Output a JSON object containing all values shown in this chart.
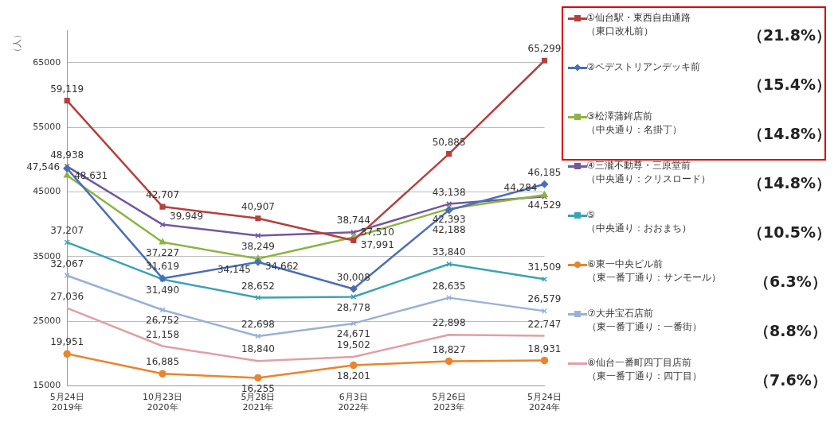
{
  "chart_data": {
    "type": "line",
    "ylabel": "（人）",
    "categories": [
      "5月24日\n2019年",
      "10月23日\n2020年",
      "5月28日\n2021年",
      "6月3日\n2022年",
      "5月26日\n2023年",
      "5月24日\n2024年"
    ],
    "series": [
      {
        "name": "①仙台駅・東西自由通路（東口改札前）",
        "color": "#b5403c",
        "marker": "square",
        "values": [
          59119,
          42707,
          40907,
          37510,
          50885,
          65299
        ],
        "value_labels": [
          "59,119",
          "42,707",
          "40,907",
          "37,510",
          "50,885",
          "65,299"
        ]
      },
      {
        "name": "②ペデストリアンデッキ前",
        "color": "#4a6fb5",
        "marker": "diamond",
        "values": [
          48631,
          31619,
          34145,
          30008,
          42188,
          46185
        ],
        "value_labels": [
          "48,631",
          "31,619",
          "34,145",
          "30,008",
          "42,188",
          "46,185"
        ]
      },
      {
        "name": "③松澤蒲鉾店前（中央通り：名掛丁）",
        "color": "#8db443",
        "marker": "triangle",
        "values": [
          47546,
          37227,
          34662,
          37991,
          42393,
          44529
        ],
        "value_labels": [
          "47,546",
          "37,227",
          "34,662",
          "37,991",
          "42,393",
          "44,529"
        ]
      },
      {
        "name": "④三瀧不動尊・三原堂前（中央通り：クリスロード）",
        "color": "#7556a0",
        "marker": "cross",
        "values": [
          48938,
          39949,
          38249,
          38744,
          43138,
          44284
        ],
        "value_labels": [
          "48,938",
          "39,949",
          "38,249",
          "38,744",
          "43,138",
          "44,284"
        ]
      },
      {
        "name": "⑤（中央通り：おおまち）",
        "color": "#3ca3b5",
        "marker": "cross",
        "values": [
          37207,
          31490,
          28652,
          28778,
          33840,
          31509
        ],
        "value_labels": [
          "37,207",
          "31,490",
          "28,652",
          "28,778",
          "33,840",
          "31,509"
        ]
      },
      {
        "name": "⑥東一中央ビル前（東一番丁通り：サンモール）",
        "color": "#e8862e",
        "marker": "circle",
        "values": [
          19951,
          16885,
          16255,
          18201,
          18827,
          18931
        ],
        "value_labels": [
          "19,951",
          "16,885",
          "16,255",
          "18,201",
          "18,827",
          "18,931"
        ]
      },
      {
        "name": "⑦大井宝石店前（東一番丁通り：一番街）",
        "color": "#99b1d8",
        "marker": "cross",
        "values": [
          32067,
          26752,
          22698,
          24671,
          28635,
          26579
        ],
        "value_labels": [
          "32,067",
          "26,752",
          "22,698",
          "24,671",
          "28,635",
          "26,579"
        ]
      },
      {
        "name": "⑧仙台一番町四丁目店前（東一番丁通り：四丁目）",
        "color": "#e0a0a4",
        "marker": "none",
        "values": [
          27036,
          21158,
          18840,
          19502,
          22898,
          22747
        ],
        "value_labels": [
          "27,036",
          "21,158",
          "18,840",
          "19,502",
          "22,898",
          "22,747"
        ]
      }
    ],
    "annotations": [
      "（21.8%）",
      "（15.4%）",
      "（14.8%）",
      "（14.8%）",
      "（10.5%）",
      "（6.3%）",
      "（8.8%）",
      "（7.6%）"
    ],
    "ylim": [
      15000,
      70000
    ],
    "yticks": [
      15000,
      25000,
      35000,
      45000,
      55000,
      65000
    ],
    "grid": "y",
    "legend": "right"
  }
}
